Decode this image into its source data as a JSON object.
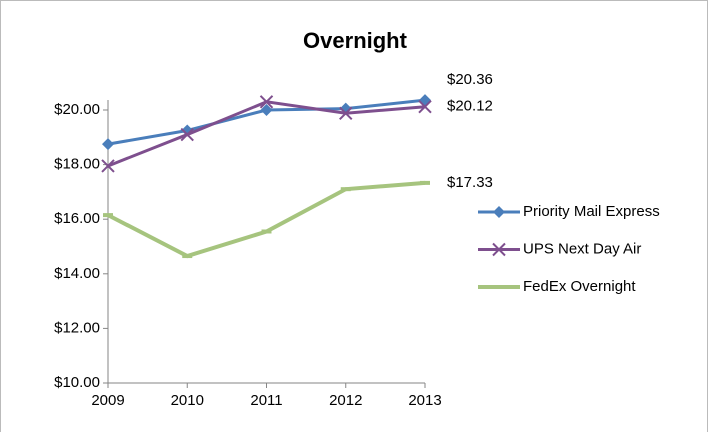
{
  "chart_data": {
    "type": "line",
    "title": "Overnight",
    "categories": [
      "2009",
      "2010",
      "2011",
      "2012",
      "2013"
    ],
    "series": [
      {
        "name": "Priority Mail Express",
        "color": "#4a7ebb",
        "marker": "diamond",
        "values": [
          18.75,
          19.25,
          20.0,
          20.05,
          20.36
        ],
        "value_labels": [
          null,
          null,
          null,
          null,
          "$20.36"
        ]
      },
      {
        "name": "UPS Next Day Air",
        "color": "#7e4f8e",
        "marker": "x",
        "values": [
          17.95,
          19.1,
          20.3,
          19.88,
          20.12
        ],
        "value_labels": [
          null,
          null,
          null,
          null,
          "$20.12"
        ]
      },
      {
        "name": "FedEx Overnight",
        "color": "#a6c47e",
        "marker": "dash",
        "values": [
          16.15,
          14.65,
          15.55,
          17.1,
          17.33
        ],
        "value_labels": [
          null,
          null,
          null,
          null,
          "$17.33"
        ]
      }
    ],
    "ylim": [
      10,
      20
    ],
    "yticks": [
      {
        "value": 10,
        "label": "$10.00"
      },
      {
        "value": 12,
        "label": "$12.00"
      },
      {
        "value": 14,
        "label": "$14.00"
      },
      {
        "value": 16,
        "label": "$16.00"
      },
      {
        "value": 18,
        "label": "$18.00"
      },
      {
        "value": 20,
        "label": "$20.00"
      }
    ],
    "grid": false,
    "legend": "right"
  }
}
